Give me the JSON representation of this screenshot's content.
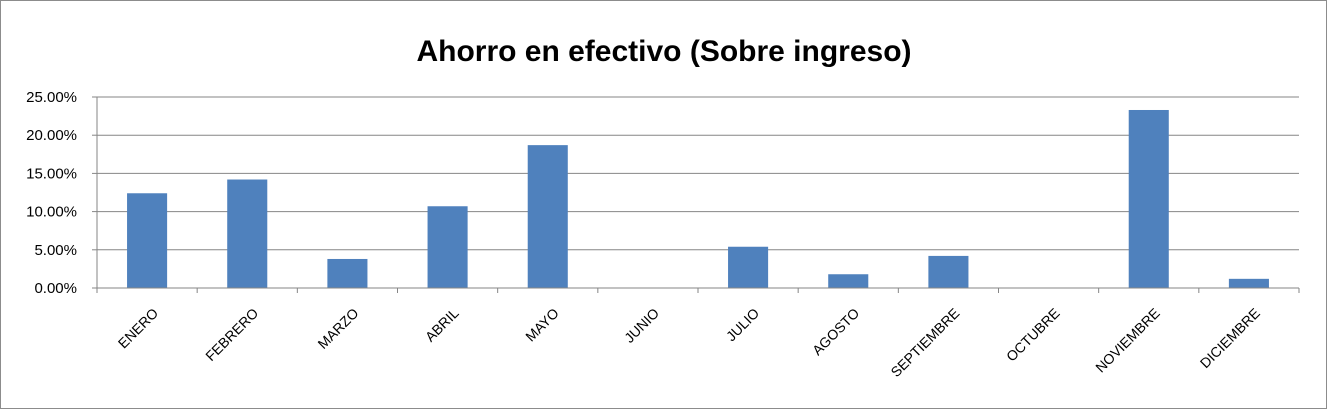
{
  "chart_data": {
    "type": "bar",
    "title": "Ahorro en efectivo (Sobre ingreso)",
    "xlabel": "",
    "ylabel": "",
    "categories": [
      "ENERO",
      "FEBRERO",
      "MARZO",
      "ABRIL",
      "MAYO",
      "JUNIO",
      "JULIO",
      "AGOSTO",
      "SEPTIEMBRE",
      "OCTUBRE",
      "NOVIEMBRE",
      "DICIEMBRE"
    ],
    "values": [
      12.4,
      14.2,
      3.8,
      10.7,
      18.7,
      0,
      5.4,
      1.8,
      4.2,
      0,
      23.3,
      1.2
    ],
    "ylim": [
      0,
      25
    ],
    "yticks": [
      0,
      5,
      10,
      15,
      20,
      25
    ],
    "ytick_labels": [
      "0.00%",
      "5.00%",
      "10.00%",
      "15.00%",
      "20.00%",
      "25.00%"
    ],
    "grid": true,
    "legend": "none",
    "bar_color": "#4f81bd",
    "grid_color": "#868686"
  }
}
